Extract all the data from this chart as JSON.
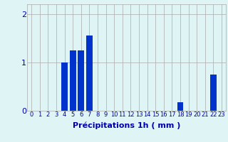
{
  "hours": [
    0,
    1,
    2,
    3,
    4,
    5,
    6,
    7,
    8,
    9,
    10,
    11,
    12,
    13,
    14,
    15,
    16,
    17,
    18,
    19,
    20,
    21,
    22,
    23
  ],
  "values": [
    0,
    0,
    0,
    0,
    1.0,
    1.25,
    1.25,
    1.55,
    0,
    0,
    0,
    0,
    0,
    0,
    0,
    0,
    0,
    0,
    0.18,
    0,
    0,
    0,
    0.75,
    0
  ],
  "bar_color": "#0033cc",
  "background_color": "#dff4f4",
  "grid_color": "#aaaaaa",
  "axis_color": "#0000aa",
  "xlabel": "Précipitations 1h ( mm )",
  "xlabel_fontsize": 8,
  "tick_fontsize": 6,
  "ylim": [
    0,
    2.2
  ],
  "yticks": [
    0,
    1,
    2
  ],
  "xlim": [
    -0.5,
    23.5
  ]
}
